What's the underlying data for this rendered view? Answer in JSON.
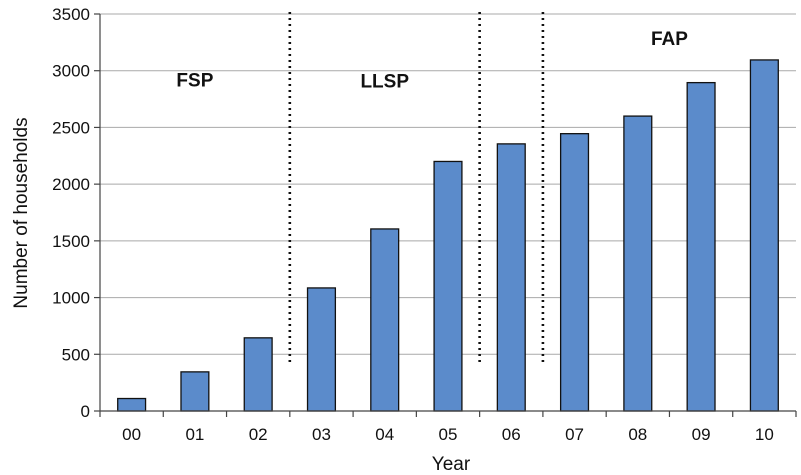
{
  "chart_data": {
    "type": "bar",
    "title": "",
    "xlabel": "Year",
    "ylabel": "Number of households",
    "categories": [
      "00",
      "01",
      "02",
      "03",
      "04",
      "05",
      "06",
      "07",
      "08",
      "09",
      "10"
    ],
    "values": [
      110,
      345,
      645,
      1085,
      1605,
      2200,
      2355,
      2445,
      2600,
      2895,
      3095
    ],
    "ylim": [
      0,
      3500
    ],
    "yticks": [
      0,
      500,
      1000,
      1500,
      2000,
      2500,
      3000,
      3500
    ],
    "grid": true,
    "bar_color": "#5b8bcb",
    "periods": [
      {
        "label": "FSP",
        "start_index": 0,
        "end_index": 2
      },
      {
        "label": "LLSP",
        "start_index": 3,
        "end_index": 5
      },
      {
        "label": "FAP",
        "start_index": 7,
        "end_index": 10
      }
    ],
    "dividers_after_index": [
      2,
      5,
      6
    ]
  }
}
